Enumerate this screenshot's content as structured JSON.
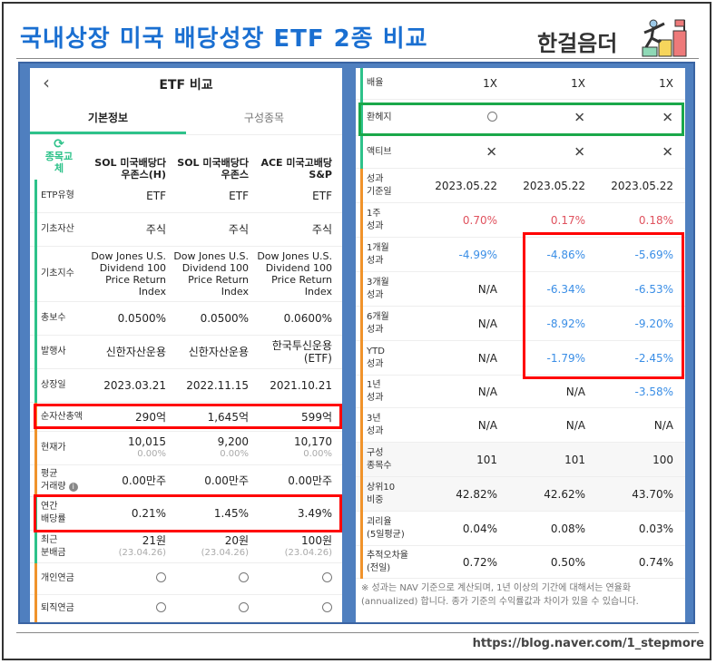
{
  "title": "국내상장 미국 배당성장 ETF 2종 비교",
  "brand": "한걸음더",
  "footer_url": "https://blog.naver.com/1_stepmore",
  "colors": {
    "title": "#1a6fd1",
    "accent_green": "#2ec28a",
    "accent_orange": "#f0932b",
    "positive": "#e0525e",
    "negative": "#3a8ee6",
    "highlight_red": "#ff0000",
    "highlight_green": "#1aa84a"
  },
  "left": {
    "header_title": "ETF 비교",
    "back_icon": "chevron-left-icon",
    "tabs": [
      {
        "label": "기본정보",
        "active": true
      },
      {
        "label": "구성종목",
        "active": false
      }
    ],
    "swap_label": "종목교체",
    "funds": [
      "SOL 미국배당다우존스(H)",
      "SOL 미국배당다우존스",
      "ACE 미국고배당S&P"
    ],
    "rows": [
      {
        "label": "ETP유형",
        "values": [
          "ETF",
          "ETF",
          "ETF"
        ]
      },
      {
        "label": "기초자산",
        "values": [
          "주식",
          "주식",
          "주식"
        ]
      },
      {
        "label": "기초지수",
        "values": [
          "Dow Jones U.S. Dividend 100 Price Return Index",
          "Dow Jones U.S. Dividend 100 Price Return Index",
          "Dow Jones U.S. Dividend 100 Price Return Index"
        ]
      },
      {
        "label": "총보수",
        "values": [
          "0.0500%",
          "0.0500%",
          "0.0600%"
        ]
      },
      {
        "label": "발행사",
        "values": [
          "신한자산운용",
          "신한자산운용",
          "한국투신운용(ETF)"
        ]
      },
      {
        "label": "상장일",
        "values": [
          "2023.03.21",
          "2022.11.15",
          "2021.10.21"
        ]
      },
      {
        "label": "순자산총액",
        "values": [
          "290억",
          "1,645억",
          "599억"
        ]
      },
      {
        "label": "현재가",
        "values": [
          "10,015",
          "9,200",
          "10,170"
        ],
        "subs": [
          "0.00%",
          "0.00%",
          "0.00%"
        ]
      },
      {
        "label": "평균 거래량",
        "values": [
          "0.00만주",
          "0.00만주",
          "0.00만주"
        ]
      },
      {
        "label": "연간 배당률",
        "values": [
          "0.21%",
          "1.45%",
          "3.49%"
        ]
      },
      {
        "label": "최근 분배금",
        "values": [
          "21원",
          "20원",
          "100원"
        ],
        "subs": [
          "(23.04.26)",
          "(23.04.26)",
          "(23.04.26)"
        ]
      },
      {
        "label": "개인연금",
        "values": [
          "O",
          "O",
          "O"
        ]
      },
      {
        "label": "퇴직연금",
        "values": [
          "O",
          "O",
          "O"
        ]
      }
    ]
  },
  "right": {
    "rows": [
      {
        "label": "배율",
        "values": [
          "1X",
          "1X",
          "1X"
        ]
      },
      {
        "label": "환헤지",
        "values": [
          "O",
          "X",
          "X"
        ]
      },
      {
        "label": "액티브",
        "values": [
          "X",
          "X",
          "X"
        ]
      },
      {
        "label": "성과 기준일",
        "values": [
          "2023.05.22",
          "2023.05.22",
          "2023.05.22"
        ]
      },
      {
        "label": "1주 성과",
        "values": [
          "0.70%",
          "0.17%",
          "0.18%"
        ]
      },
      {
        "label": "1개월 성과",
        "values": [
          "-4.99%",
          "-4.86%",
          "-5.69%"
        ]
      },
      {
        "label": "3개월 성과",
        "values": [
          "N/A",
          "-6.34%",
          "-6.53%"
        ]
      },
      {
        "label": "6개월 성과",
        "values": [
          "N/A",
          "-8.92%",
          "-9.20%"
        ]
      },
      {
        "label": "YTD 성과",
        "values": [
          "N/A",
          "-1.79%",
          "-2.45%"
        ]
      },
      {
        "label": "1년 성과",
        "values": [
          "N/A",
          "N/A",
          "-3.58%"
        ]
      },
      {
        "label": "3년 성과",
        "values": [
          "N/A",
          "N/A",
          "N/A"
        ]
      },
      {
        "label": "구성 종목수",
        "values": [
          "101",
          "101",
          "100"
        ]
      },
      {
        "label": "상위10 비중",
        "values": [
          "42.82%",
          "42.62%",
          "43.70%"
        ]
      },
      {
        "label": "괴리율 (5일평균)",
        "values": [
          "0.04%",
          "0.08%",
          "0.03%"
        ]
      },
      {
        "label": "추적오차율 (전일)",
        "values": [
          "0.72%",
          "0.50%",
          "0.74%"
        ]
      }
    ],
    "note": "※ 성과는 NAV 기준으로 계산되며, 1년 이상의 기간에 대해서는 연율화(annualized) 합니다. 종가 기준의 수익률값과 차이가 있을 수 있습니다."
  }
}
